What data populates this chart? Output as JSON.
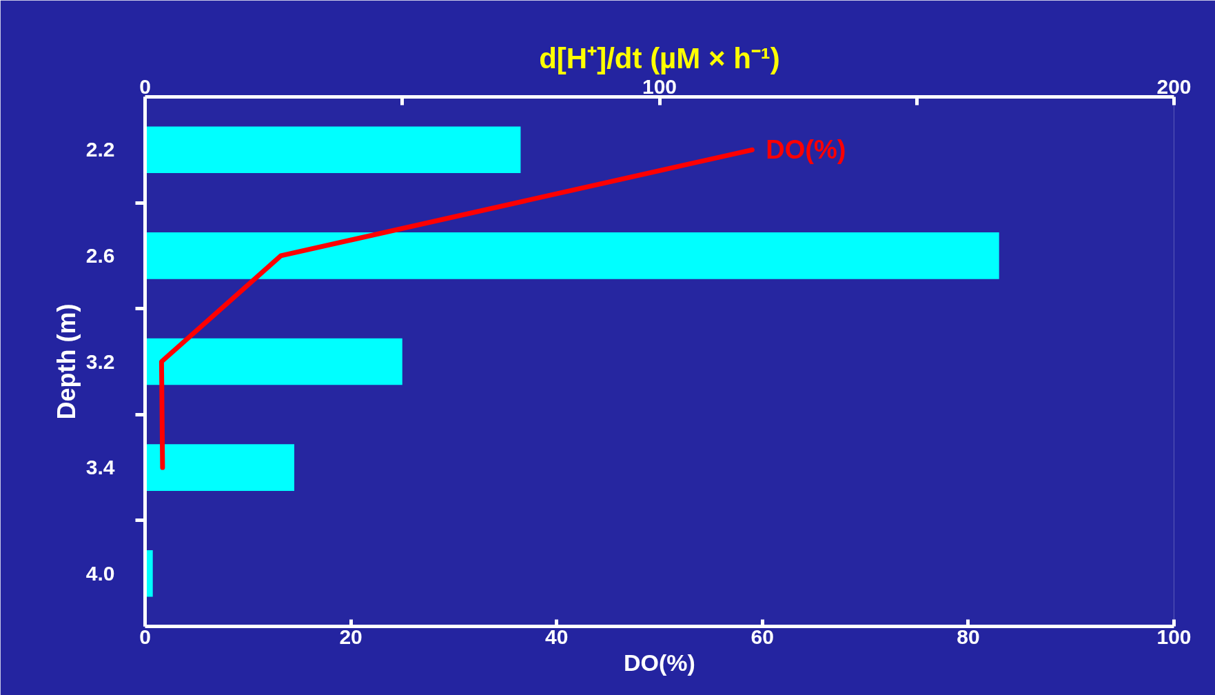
{
  "chart_data": {
    "type": "bar",
    "orientation": "horizontal",
    "x2label": "d[H⁺]/dt (µM × h⁻¹)",
    "ylabel": "Depth (m)",
    "xlabel": "DO(%)",
    "categories": [
      "2.2",
      "2.6",
      "3.2",
      "3.4",
      "4.0"
    ],
    "x2lim": [
      0,
      200
    ],
    "x2ticks": [
      0,
      {
        "value": 50,
        "label": null
      },
      100,
      {
        "value": 150,
        "label": null
      },
      200
    ],
    "xlim": [
      0,
      100
    ],
    "xticks": [
      0,
      20,
      40,
      60,
      80,
      100
    ],
    "grid": false,
    "legend": false,
    "series": [
      {
        "axis": "x2",
        "color": "#00ffff",
        "values": [
          73,
          166,
          50,
          29,
          1.5
        ]
      },
      {
        "type": "line",
        "name": "DO(%)",
        "color": "#ff0000",
        "values": [
          59,
          13.2,
          1.6,
          1.7,
          null
        ]
      }
    ]
  }
}
